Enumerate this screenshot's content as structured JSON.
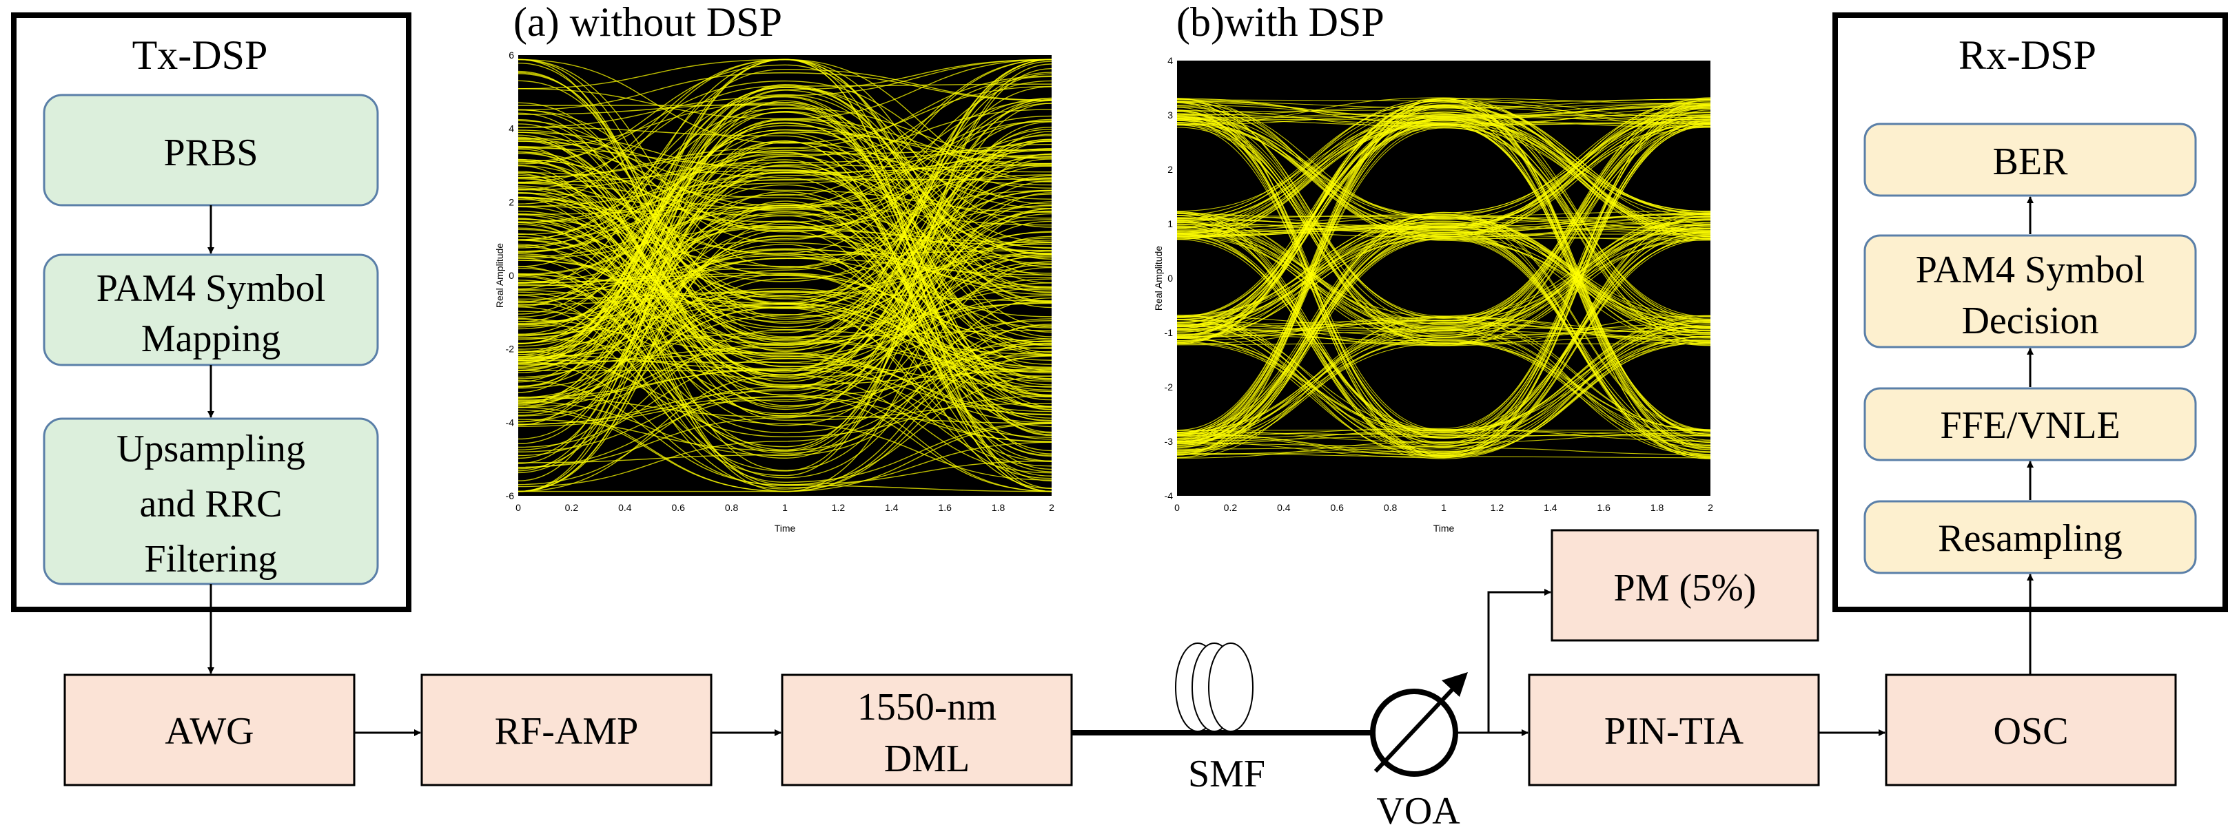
{
  "tx_dsp": {
    "title": "Tx-DSP",
    "blocks": {
      "prbs": "PRBS",
      "pam4_mapping_line1": "PAM4 Symbol",
      "pam4_mapping_line2": "Mapping",
      "upsampling_line1": "Upsampling",
      "upsampling_line2": "and RRC",
      "upsampling_line3": "Filtering"
    }
  },
  "rx_dsp": {
    "title": "Rx-DSP",
    "blocks": {
      "ber": "BER",
      "decision_line1": "PAM4 Symbol",
      "decision_line2": "Decision",
      "ffe": "FFE/VNLE",
      "resampling": "Resampling"
    }
  },
  "chain": {
    "awg": "AWG",
    "rf_amp": "RF-AMP",
    "dml_line1": "1550-nm",
    "dml_line2": "DML",
    "smf": "SMF",
    "voa": "VOA",
    "pm": "PM (5%)",
    "pin_tia": "PIN-TIA",
    "osc": "OSC"
  },
  "eye_a": {
    "title": "(a) without DSP",
    "xlabel": "Time",
    "ylabel": "Real Amplitude",
    "xticks": [
      "0",
      "0.2",
      "0.4",
      "0.6",
      "0.8",
      "1",
      "1.2",
      "1.4",
      "1.6",
      "1.8",
      "2"
    ],
    "yticks": [
      "6",
      "4",
      "2",
      "0",
      "-2",
      "-4",
      "-6"
    ]
  },
  "eye_b": {
    "title": "(b)with DSP",
    "xlabel": "Time",
    "ylabel": "Real Amplitude",
    "xticks": [
      "0",
      "0.2",
      "0.4",
      "0.6",
      "0.8",
      "1",
      "1.2",
      "1.4",
      "1.6",
      "1.8",
      "2"
    ],
    "yticks": [
      "4",
      "3",
      "2",
      "1",
      "0",
      "-1",
      "-2",
      "-3",
      "-4"
    ]
  },
  "colors": {
    "tx_block_fill": "#dcefdc",
    "tx_block_stroke": "#5a7fa8",
    "rx_block_fill": "#fdf0cf",
    "rx_block_stroke": "#5a7fa8",
    "chain_block_fill": "#fbe3d6",
    "eye_background": "#000000",
    "eye_trace": "#ffff00"
  }
}
